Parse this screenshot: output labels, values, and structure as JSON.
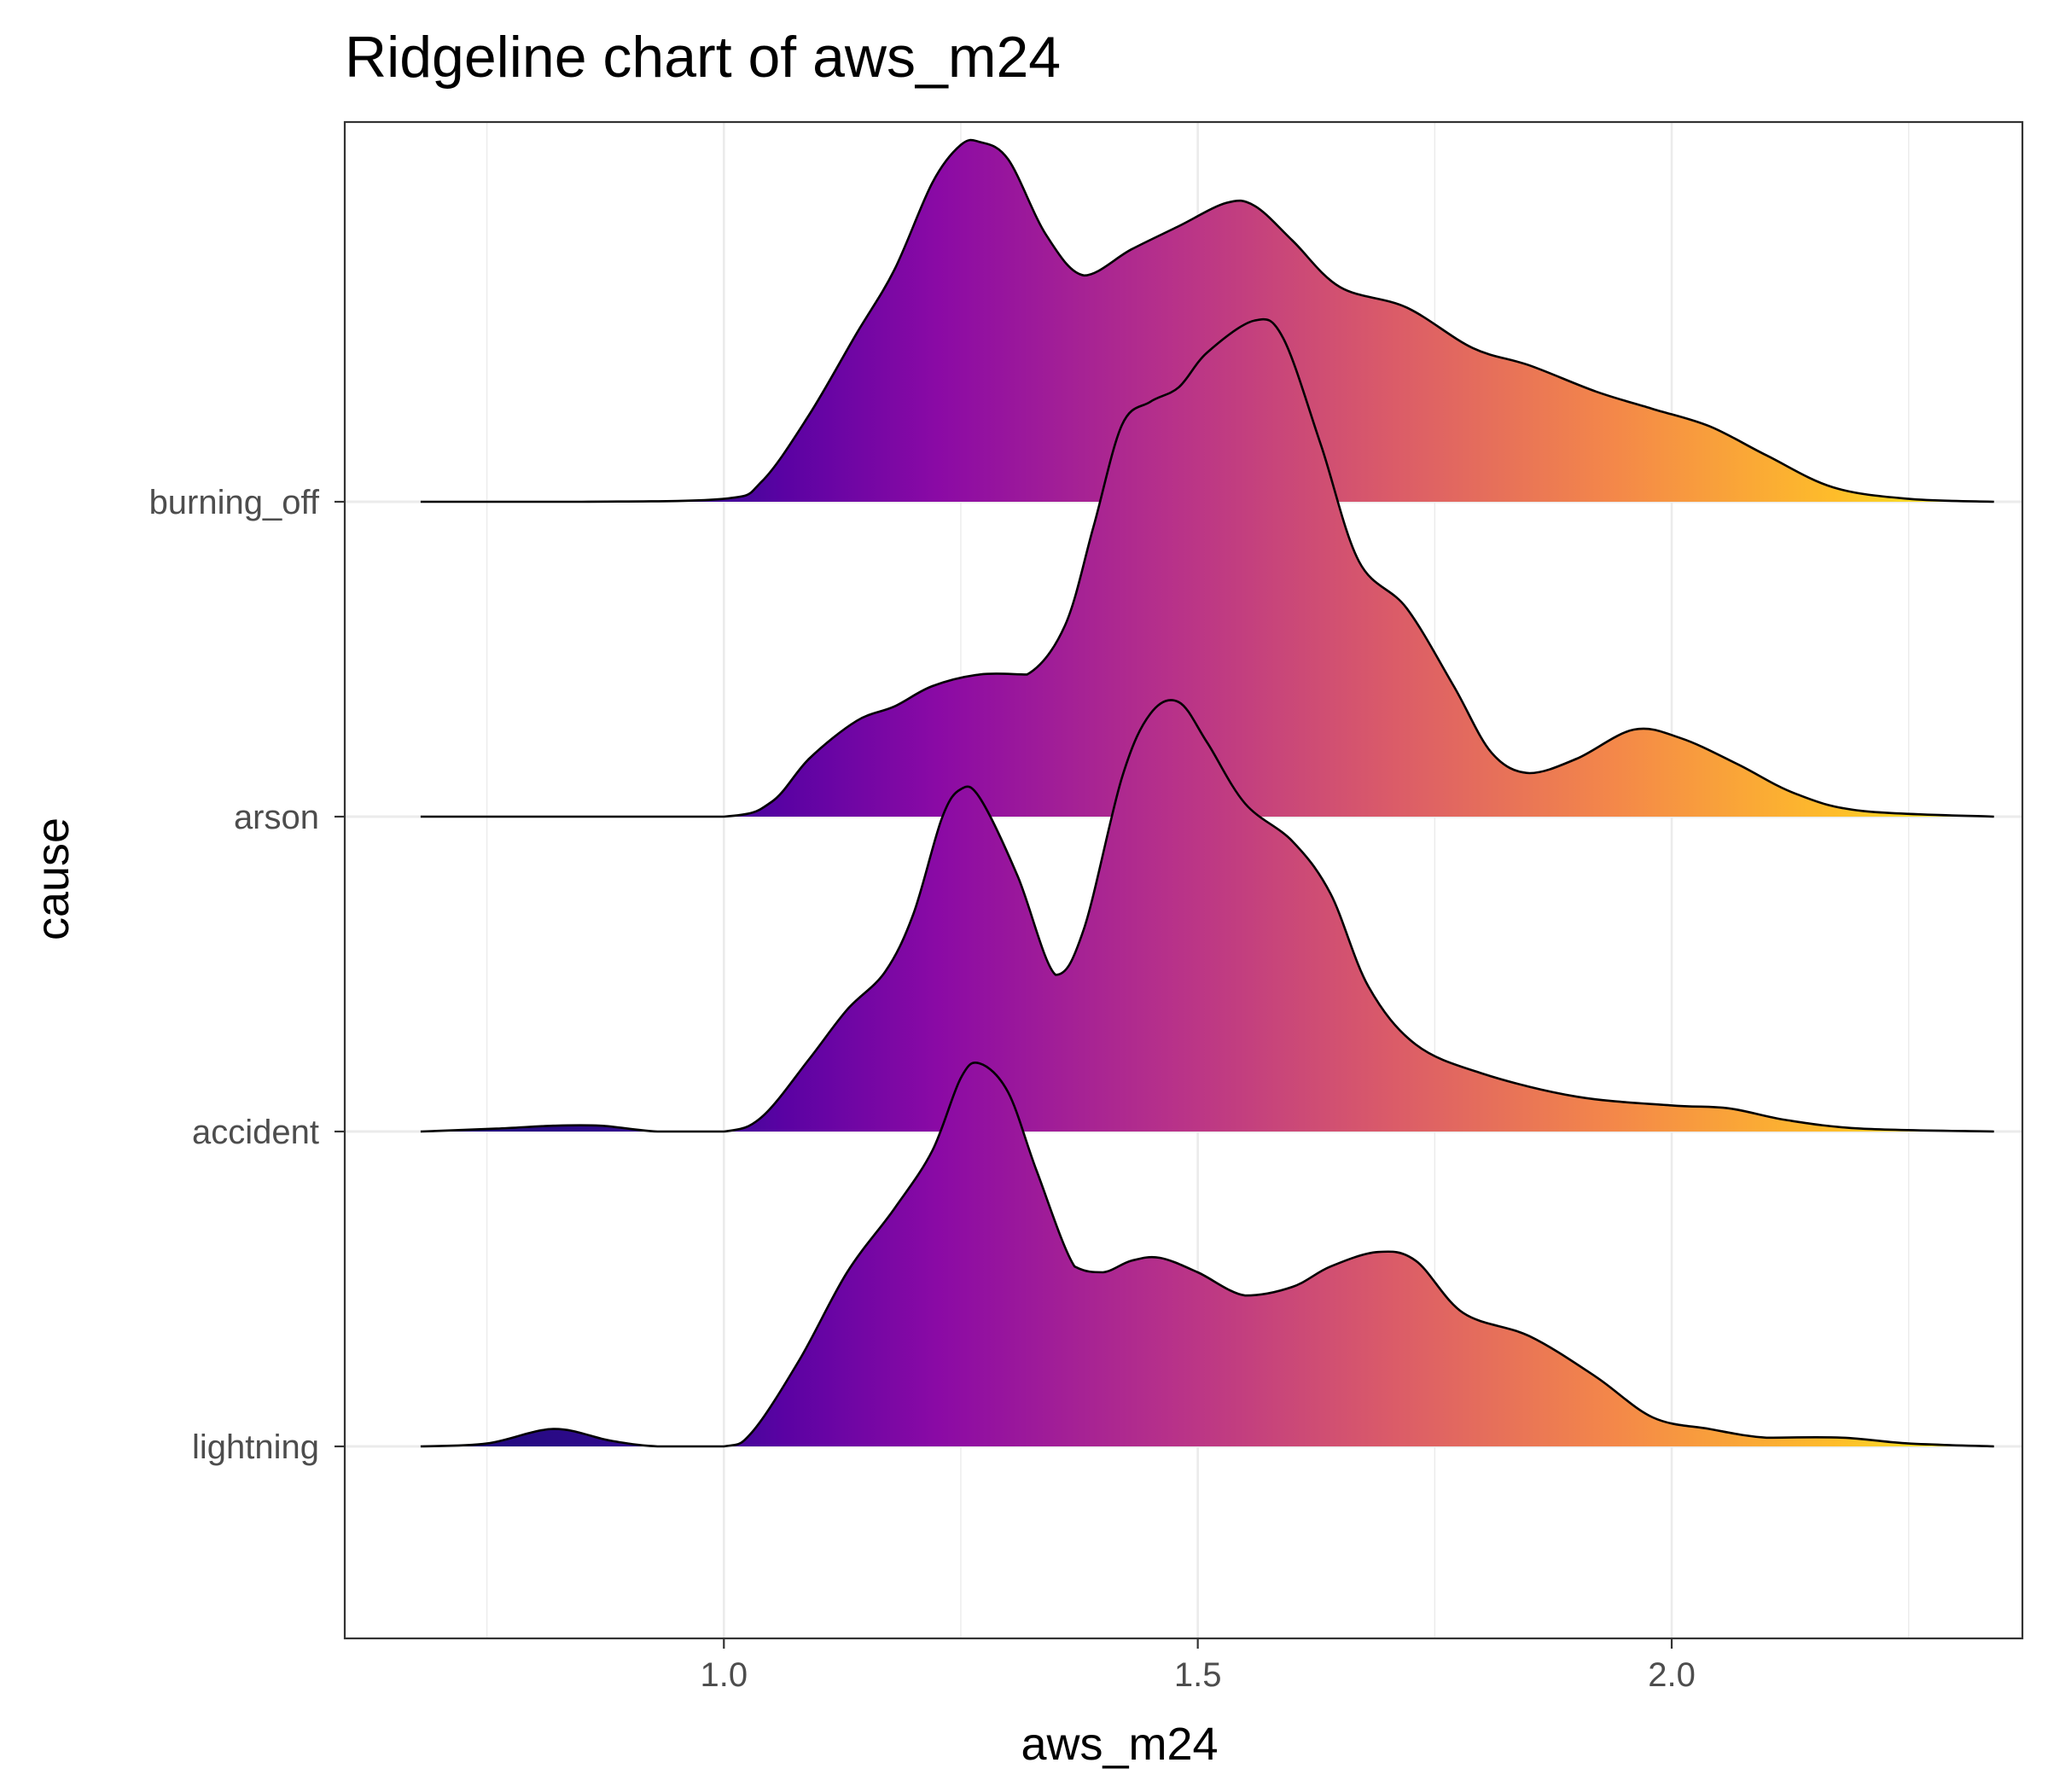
{
  "chart_data": {
    "type": "ridgeline",
    "title": "Ridgeline chart of aws_m24",
    "xlabel": "aws_m24",
    "ylabel": "cause",
    "xlim": [
      0.6,
      2.37
    ],
    "x_ticks": [
      1.0,
      1.5,
      2.0
    ],
    "x_tick_labels": [
      "1.0",
      "1.5",
      "2.0"
    ],
    "grid": true,
    "fill": "plasma gradient by x",
    "gradient_stops": [
      "#5b02a3",
      "#8b0aa5",
      "#b83289",
      "#db5c68",
      "#f48849",
      "#febd2a",
      "#f0f921"
    ],
    "series": [
      {
        "name": "lightning",
        "points": [
          [
            0.68,
            0.0
          ],
          [
            0.75,
            0.01
          ],
          [
            0.82,
            0.06
          ],
          [
            0.88,
            0.02
          ],
          [
            0.93,
            0.0
          ],
          [
            1.0,
            0.0
          ],
          [
            1.03,
            0.05
          ],
          [
            1.08,
            0.3
          ],
          [
            1.13,
            0.6
          ],
          [
            1.18,
            0.82
          ],
          [
            1.22,
            1.02
          ],
          [
            1.25,
            1.27
          ],
          [
            1.27,
            1.32
          ],
          [
            1.3,
            1.22
          ],
          [
            1.33,
            0.95
          ],
          [
            1.37,
            0.62
          ],
          [
            1.4,
            0.6
          ],
          [
            1.43,
            0.64
          ],
          [
            1.46,
            0.65
          ],
          [
            1.5,
            0.6
          ],
          [
            1.55,
            0.52
          ],
          [
            1.6,
            0.55
          ],
          [
            1.64,
            0.62
          ],
          [
            1.69,
            0.67
          ],
          [
            1.73,
            0.64
          ],
          [
            1.78,
            0.46
          ],
          [
            1.85,
            0.38
          ],
          [
            1.92,
            0.24
          ],
          [
            1.98,
            0.1
          ],
          [
            2.04,
            0.06
          ],
          [
            2.1,
            0.03
          ],
          [
            2.18,
            0.03
          ],
          [
            2.25,
            0.01
          ],
          [
            2.34,
            0.0
          ]
        ]
      },
      {
        "name": "accident",
        "points": [
          [
            0.68,
            0.0
          ],
          [
            0.76,
            0.01
          ],
          [
            0.82,
            0.02
          ],
          [
            0.87,
            0.02
          ],
          [
            0.93,
            0.0
          ],
          [
            1.0,
            0.0
          ],
          [
            1.04,
            0.05
          ],
          [
            1.09,
            0.25
          ],
          [
            1.13,
            0.42
          ],
          [
            1.17,
            0.55
          ],
          [
            1.2,
            0.75
          ],
          [
            1.23,
            1.08
          ],
          [
            1.25,
            1.18
          ],
          [
            1.27,
            1.15
          ],
          [
            1.31,
            0.88
          ],
          [
            1.35,
            0.54
          ],
          [
            1.38,
            0.7
          ],
          [
            1.42,
            1.22
          ],
          [
            1.45,
            1.44
          ],
          [
            1.48,
            1.48
          ],
          [
            1.51,
            1.34
          ],
          [
            1.55,
            1.13
          ],
          [
            1.6,
            1.0
          ],
          [
            1.64,
            0.82
          ],
          [
            1.68,
            0.5
          ],
          [
            1.73,
            0.3
          ],
          [
            1.8,
            0.2
          ],
          [
            1.9,
            0.12
          ],
          [
            2.0,
            0.09
          ],
          [
            2.06,
            0.08
          ],
          [
            2.12,
            0.04
          ],
          [
            2.2,
            0.01
          ],
          [
            2.34,
            0.0
          ]
        ]
      },
      {
        "name": "arson",
        "points": [
          [
            0.68,
            0.0
          ],
          [
            0.85,
            0.0
          ],
          [
            1.0,
            0.0
          ],
          [
            1.05,
            0.05
          ],
          [
            1.09,
            0.2
          ],
          [
            1.14,
            0.33
          ],
          [
            1.18,
            0.38
          ],
          [
            1.22,
            0.45
          ],
          [
            1.27,
            0.49
          ],
          [
            1.32,
            0.49
          ],
          [
            1.36,
            0.66
          ],
          [
            1.39,
            1.0
          ],
          [
            1.42,
            1.35
          ],
          [
            1.45,
            1.43
          ],
          [
            1.48,
            1.48
          ],
          [
            1.51,
            1.6
          ],
          [
            1.56,
            1.71
          ],
          [
            1.59,
            1.65
          ],
          [
            1.63,
            1.28
          ],
          [
            1.67,
            0.88
          ],
          [
            1.72,
            0.72
          ],
          [
            1.77,
            0.45
          ],
          [
            1.81,
            0.22
          ],
          [
            1.85,
            0.15
          ],
          [
            1.9,
            0.2
          ],
          [
            1.96,
            0.3
          ],
          [
            2.01,
            0.27
          ],
          [
            2.07,
            0.18
          ],
          [
            2.13,
            0.08
          ],
          [
            2.2,
            0.02
          ],
          [
            2.34,
            0.0
          ]
        ]
      },
      {
        "name": "burning_off",
        "points": [
          [
            0.68,
            0.0
          ],
          [
            0.85,
            0.0
          ],
          [
            1.0,
            0.01
          ],
          [
            1.04,
            0.07
          ],
          [
            1.09,
            0.3
          ],
          [
            1.14,
            0.58
          ],
          [
            1.18,
            0.8
          ],
          [
            1.22,
            1.1
          ],
          [
            1.25,
            1.23
          ],
          [
            1.27,
            1.24
          ],
          [
            1.3,
            1.18
          ],
          [
            1.34,
            0.92
          ],
          [
            1.38,
            0.78
          ],
          [
            1.43,
            0.87
          ],
          [
            1.48,
            0.95
          ],
          [
            1.53,
            1.03
          ],
          [
            1.56,
            1.02
          ],
          [
            1.6,
            0.9
          ],
          [
            1.65,
            0.74
          ],
          [
            1.72,
            0.67
          ],
          [
            1.79,
            0.53
          ],
          [
            1.85,
            0.47
          ],
          [
            1.92,
            0.38
          ],
          [
            1.98,
            0.32
          ],
          [
            2.04,
            0.26
          ],
          [
            2.1,
            0.16
          ],
          [
            2.17,
            0.05
          ],
          [
            2.25,
            0.01
          ],
          [
            2.34,
            0.0
          ]
        ]
      }
    ]
  }
}
